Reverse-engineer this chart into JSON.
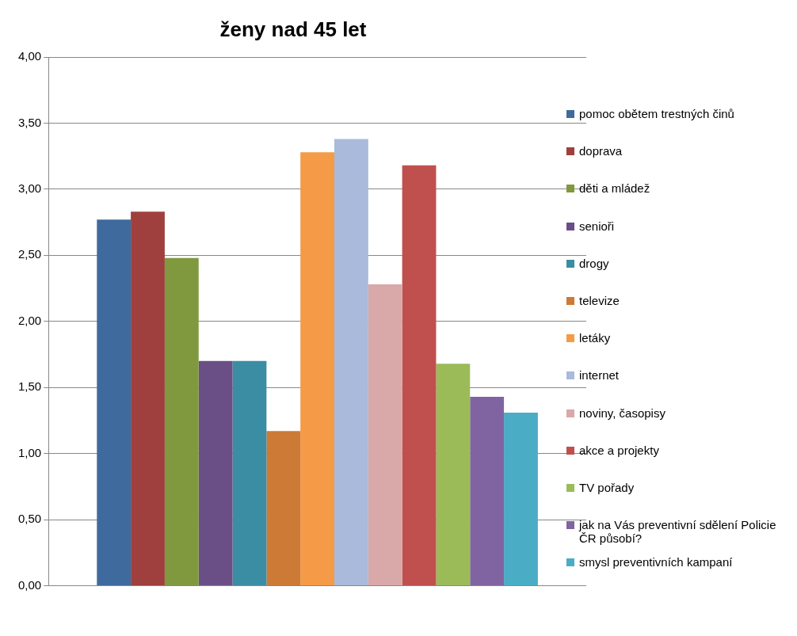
{
  "chart_data": {
    "type": "bar",
    "title": "ženy nad 45 let",
    "categories": [
      null
    ],
    "series": [
      {
        "name": "pomoc obětem trestných činů",
        "color": "#3f6a9e",
        "values": [
          2.77
        ]
      },
      {
        "name": "doprava",
        "color": "#a0403e",
        "values": [
          2.83
        ]
      },
      {
        "name": "děti a mládež",
        "color": "#80993f",
        "values": [
          2.48
        ]
      },
      {
        "name": "senioři",
        "color": "#6a4f86",
        "values": [
          1.7
        ]
      },
      {
        "name": "drogy",
        "color": "#3a8da3",
        "values": [
          1.7
        ]
      },
      {
        "name": "televize",
        "color": "#cc7a36",
        "values": [
          1.17
        ]
      },
      {
        "name": "letáky",
        "color": "#f59a46",
        "values": [
          3.28
        ]
      },
      {
        "name": "internet",
        "color": "#a9badb",
        "values": [
          3.38
        ]
      },
      {
        "name": "noviny, časopisy",
        "color": "#d9a8a8",
        "values": [
          2.28
        ]
      },
      {
        "name": "akce a projekty",
        "color": "#c0504d",
        "values": [
          3.18
        ]
      },
      {
        "name": "TV pořady",
        "color": "#9bbb59",
        "values": [
          1.68
        ]
      },
      {
        "name": "jak na Vás preventivní sdělení Policie ČR působí?",
        "color": "#8064a2",
        "values": [
          1.43
        ]
      },
      {
        "name": "smysl preventivních kampaní",
        "color": "#4bacc6",
        "values": [
          1.31
        ]
      }
    ],
    "ylim": [
      0,
      4
    ],
    "yticks": [
      {
        "value": 0,
        "label": "0,00"
      },
      {
        "value": 0.5,
        "label": "0,50"
      },
      {
        "value": 1,
        "label": "1,00"
      },
      {
        "value": 1.5,
        "label": "1,50"
      },
      {
        "value": 2,
        "label": "2,00"
      },
      {
        "value": 2.5,
        "label": "2,50"
      },
      {
        "value": 3,
        "label": "3,00"
      },
      {
        "value": 3.5,
        "label": "3,50"
      },
      {
        "value": 4,
        "label": "4,00"
      }
    ],
    "grid": "y",
    "legend": "right"
  }
}
